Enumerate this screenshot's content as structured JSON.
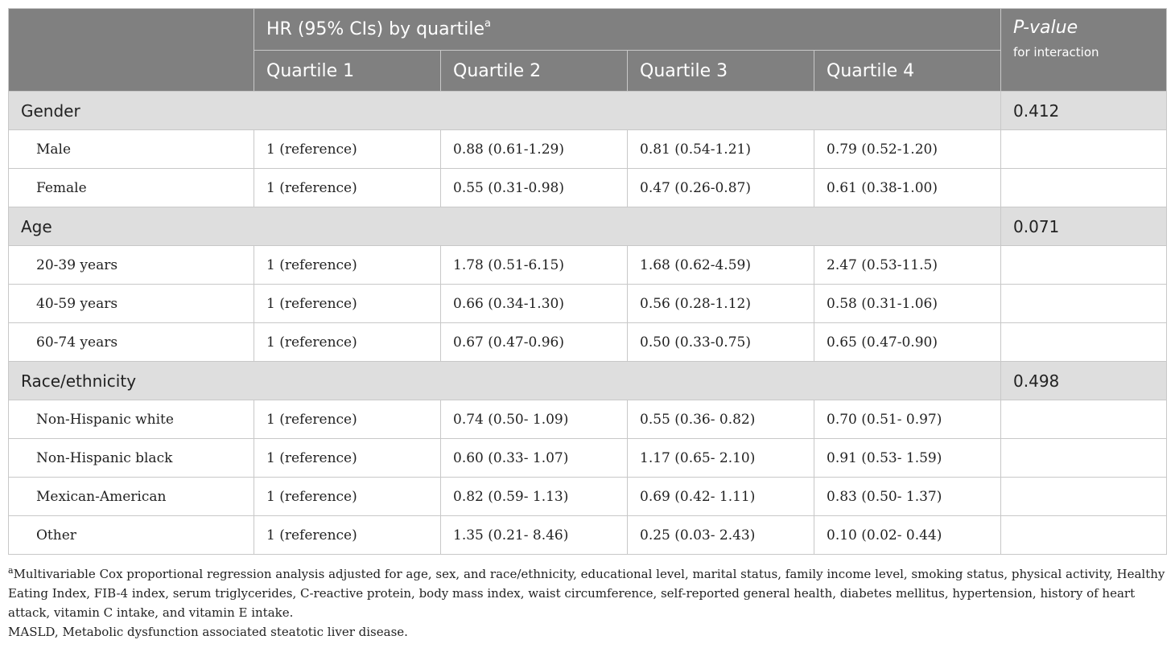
{
  "header": {
    "hr_group": "HR (95% CIs) by quartile",
    "hr_group_sup": "a",
    "pvalue_title": "P-value",
    "pvalue_sub": "for interaction",
    "quartiles": [
      "Quartile 1",
      "Quartile 2",
      "Quartile 3",
      "Quartile 4"
    ]
  },
  "groups": [
    {
      "name": "Gender",
      "p_value": "0.412",
      "rows": [
        {
          "label": "Male",
          "q1": "1 (reference)",
          "q2": "0.88 (0.61-1.29)",
          "q3": "0.81 (0.54-1.21)",
          "q4": "0.79 (0.52-1.20)"
        },
        {
          "label": "Female",
          "q1": "1 (reference)",
          "q2": "0.55 (0.31-0.98)",
          "q3": "0.47 (0.26-0.87)",
          "q4": "0.61 (0.38-1.00)"
        }
      ]
    },
    {
      "name": "Age",
      "p_value": "0.071",
      "rows": [
        {
          "label": "20-39 years",
          "q1": "1 (reference)",
          "q2": "1.78 (0.51-6.15)",
          "q3": "1.68 (0.62-4.59)",
          "q4": "2.47 (0.53-11.5)"
        },
        {
          "label": "40-59 years",
          "q1": "1 (reference)",
          "q2": "0.66 (0.34-1.30)",
          "q3": "0.56 (0.28-1.12)",
          "q4": "0.58 (0.31-1.06)"
        },
        {
          "label": "60-74 years",
          "q1": "1 (reference)",
          "q2": "0.67 (0.47-0.96)",
          "q3": "0.50 (0.33-0.75)",
          "q4": "0.65 (0.47-0.90)"
        }
      ]
    },
    {
      "name": "Race/ethnicity",
      "p_value": "0.498",
      "rows": [
        {
          "label": "Non-Hispanic white",
          "q1": "1 (reference)",
          "q2": "0.74 (0.50- 1.09)",
          "q3": "0.55 (0.36- 0.82)",
          "q4": "0.70 (0.51- 0.97)"
        },
        {
          "label": "Non-Hispanic black",
          "q1": "1 (reference)",
          "q2": "0.60 (0.33- 1.07)",
          "q3": "1.17 (0.65- 2.10)",
          "q4": "0.91 (0.53- 1.59)"
        },
        {
          "label": "Mexican-American",
          "q1": "1 (reference)",
          "q2": "0.82 (0.59- 1.13)",
          "q3": "0.69 (0.42- 1.11)",
          "q4": "0.83 (0.50- 1.37)"
        },
        {
          "label": "Other",
          "q1": "1 (reference)",
          "q2": "1.35 (0.21- 8.46)",
          "q3": "0.25 (0.03- 2.43)",
          "q4": "0.10 (0.02- 0.44)"
        }
      ]
    }
  ],
  "footnotes": {
    "a_marker": "a",
    "a_text": "Multivariable Cox proportional regression analysis adjusted for age, sex, and race/ethnicity, educational level, marital status, family income level, smoking status, physical activity, Healthy Eating Index, FIB-4 index, serum triglycerides, C-reactive protein, body mass index, waist circumference, self-reported general health, diabetes mellitus, hypertension, history of heart attack, vitamin C intake, and vitamin E intake.",
    "abbrev": "MASLD, Metabolic dysfunction associated steatotic liver disease."
  },
  "colors": {
    "header_bg": "#808080",
    "group_bg": "#dedede",
    "border": "#c8c8c8"
  }
}
